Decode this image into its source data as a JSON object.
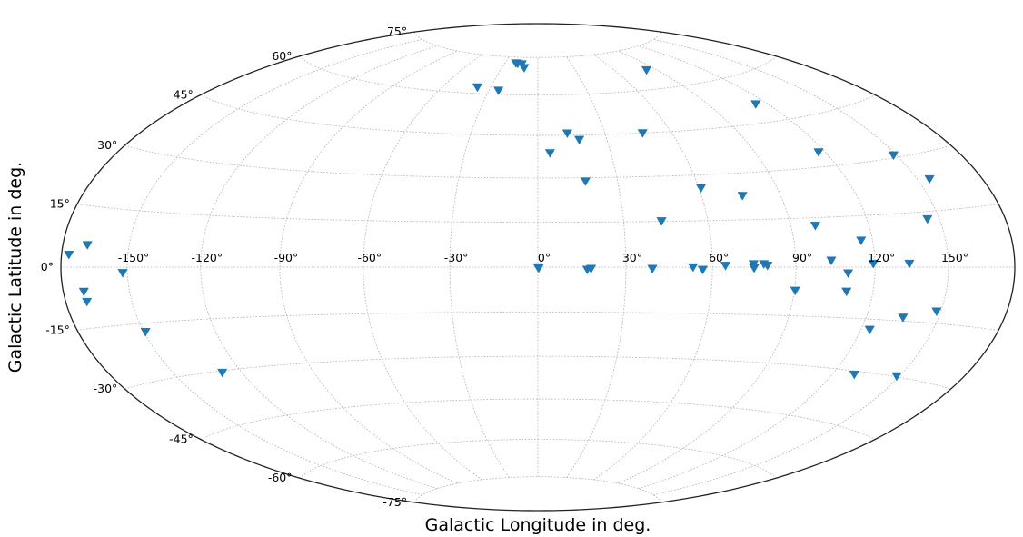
{
  "chart_data": {
    "type": "scatter",
    "projection": "hammer",
    "xlabel": "Galactic Longitude in deg.",
    "ylabel": "Galactic Latitude in deg.",
    "xlim": [
      -180,
      180
    ],
    "ylim": [
      -90,
      90
    ],
    "grid": true,
    "marker": "down-triangle",
    "color": "#1f77b4",
    "x_ticks": [
      {
        "value": -150,
        "label": "-150°"
      },
      {
        "value": -120,
        "label": "-120°"
      },
      {
        "value": -90,
        "label": "-90°"
      },
      {
        "value": -60,
        "label": "-60°"
      },
      {
        "value": -30,
        "label": "-30°"
      },
      {
        "value": 0,
        "label": "0°"
      },
      {
        "value": 30,
        "label": "30°"
      },
      {
        "value": 60,
        "label": "60°"
      },
      {
        "value": 90,
        "label": "90°"
      },
      {
        "value": 120,
        "label": "120°"
      },
      {
        "value": 150,
        "label": "150°"
      }
    ],
    "y_ticks": [
      {
        "value": 75,
        "label": "75°"
      },
      {
        "value": 60,
        "label": "60°"
      },
      {
        "value": 45,
        "label": "45°"
      },
      {
        "value": 30,
        "label": "30°"
      },
      {
        "value": 15,
        "label": "15°"
      },
      {
        "value": 0,
        "label": "0°"
      },
      {
        "value": -15,
        "label": "-15°"
      },
      {
        "value": -30,
        "label": "-30°"
      },
      {
        "value": -45,
        "label": "-45°"
      },
      {
        "value": -60,
        "label": "-60°"
      },
      {
        "value": -75,
        "label": "-75°"
      }
    ],
    "points": [
      {
        "lon": -20.1,
        "lat": 72.5
      },
      {
        "lon": -18.3,
        "lat": 72.4
      },
      {
        "lon": -14.5,
        "lat": 72.2
      },
      {
        "lon": -11.5,
        "lat": 70.7
      },
      {
        "lon": -38.3,
        "lat": 62.4
      },
      {
        "lon": -24.2,
        "lat": 61.5
      },
      {
        "lon": 83.0,
        "lat": 67.0
      },
      {
        "lon": 13.2,
        "lat": 45.7
      },
      {
        "lon": 18.0,
        "lat": 43.3
      },
      {
        "lon": 47.0,
        "lat": 45.0
      },
      {
        "lon": 5.0,
        "lat": 38.7
      },
      {
        "lon": 114.1,
        "lat": 50.9
      },
      {
        "lon": 117.1,
        "lat": 34.4
      },
      {
        "lon": 17.9,
        "lat": 28.8
      },
      {
        "lon": 148.6,
        "lat": 30.7
      },
      {
        "lon": 60.8,
        "lat": 25.7
      },
      {
        "lon": 75.4,
        "lat": 22.7
      },
      {
        "lon": 155.5,
        "lat": 23.3
      },
      {
        "lon": 43.4,
        "lat": 15.1
      },
      {
        "lon": 99.2,
        "lat": 12.6
      },
      {
        "lon": 144.9,
        "lat": 13.0
      },
      {
        "lon": 115.5,
        "lat": 7.8
      },
      {
        "lon": -168.5,
        "lat": 5.5
      },
      {
        "lon": -176.5,
        "lat": 3.0
      },
      {
        "lon": 103.2,
        "lat": 2.0
      },
      {
        "lon": 133.7,
        "lat": 1.0
      },
      {
        "lon": 119.3,
        "lat": 1.0
      },
      {
        "lon": 74.6,
        "lat": 1.0
      },
      {
        "lon": 78.3,
        "lat": 1.0
      },
      {
        "lon": 79.6,
        "lat": 0.5
      },
      {
        "lon": 64.6,
        "lat": 0.5
      },
      {
        "lon": 53.2,
        "lat": 0.0
      },
      {
        "lon": 0.0,
        "lat": 0.0
      },
      {
        "lon": 0.3,
        "lat": -0.3
      },
      {
        "lon": 18.1,
        "lat": -0.5
      },
      {
        "lon": 39.1,
        "lat": -0.5
      },
      {
        "lon": 74.8,
        "lat": -0.3
      },
      {
        "lon": 56.6,
        "lat": -0.8
      },
      {
        "lon": 16.8,
        "lat": -0.8
      },
      {
        "lon": -152.0,
        "lat": -1.5
      },
      {
        "lon": 109.6,
        "lat": -1.8
      },
      {
        "lon": -170.3,
        "lat": -6.0
      },
      {
        "lon": -170.0,
        "lat": -8.5
      },
      {
        "lon": 90.3,
        "lat": -7.2
      },
      {
        "lon": 109.7,
        "lat": -7.2
      },
      {
        "lon": 148.2,
        "lat": -11.8
      },
      {
        "lon": 135.0,
        "lat": -14.0
      },
      {
        "lon": 123.5,
        "lat": -18.0
      },
      {
        "lon": -149.3,
        "lat": -17.3
      },
      {
        "lon": -128.4,
        "lat": -30.5
      },
      {
        "lon": 129.5,
        "lat": -31.0
      },
      {
        "lon": 148.7,
        "lat": -29.8
      }
    ]
  }
}
